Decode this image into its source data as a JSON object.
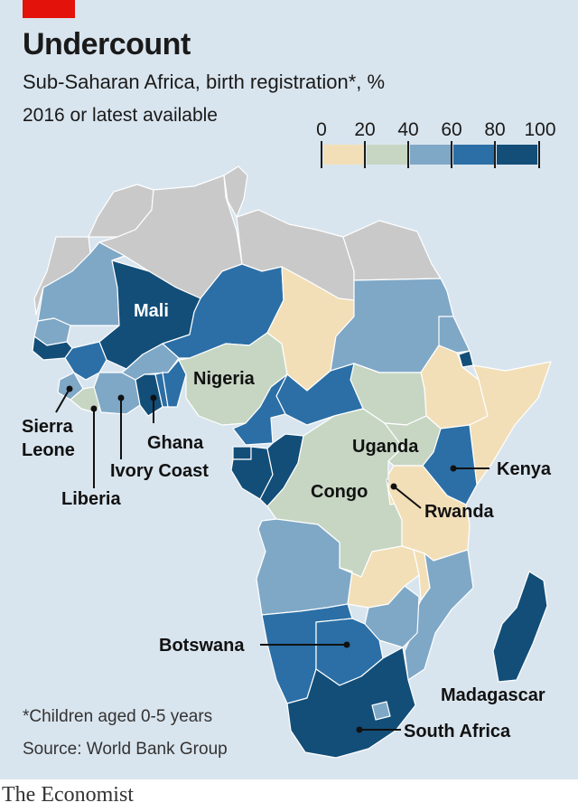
{
  "header": {
    "title": "Undercount",
    "subtitle": "Sub-Saharan Africa, birth registration*, %",
    "period": "2016 or latest available"
  },
  "legend": {
    "ticks": [
      "0",
      "20",
      "40",
      "60",
      "80",
      "100"
    ],
    "colors": [
      "#f2dfb8",
      "#c6d6c3",
      "#7fa8c7",
      "#2b6fa6",
      "#124e78"
    ]
  },
  "colors": {
    "no_data": "#c9c9c9",
    "background": "#d9e5ee",
    "brand_red": "#e3120b"
  },
  "labels": {
    "mali": "Mali",
    "nigeria": "Nigeria",
    "sierra_leone_1": "Sierra",
    "sierra_leone_2": "Leone",
    "ghana": "Ghana",
    "ivory_coast": "Ivory Coast",
    "liberia": "Liberia",
    "uganda": "Uganda",
    "kenya": "Kenya",
    "congo": "Congo",
    "rwanda": "Rwanda",
    "botswana": "Botswana",
    "madagascar": "Madagascar",
    "south_africa": "South Africa"
  },
  "footer": {
    "note": "*Children aged 0-5 years",
    "source": "Source: World Bank Group",
    "brand": "The Economist"
  }
}
